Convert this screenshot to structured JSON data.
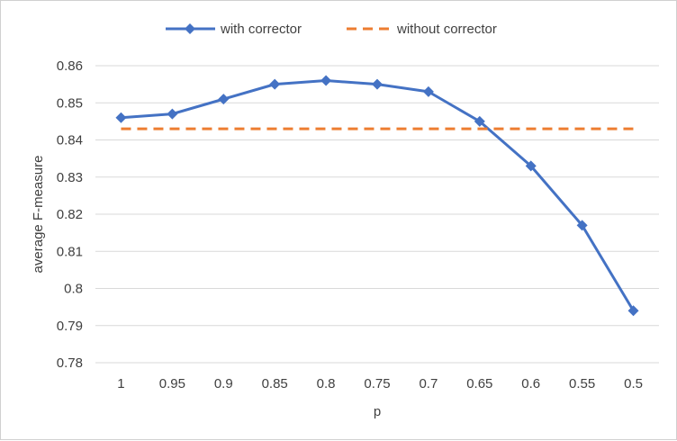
{
  "chart_data": {
    "type": "line",
    "title": "",
    "xlabel": "p",
    "ylabel": "average F-measure",
    "categories": [
      "1",
      "0.95",
      "0.9",
      "0.85",
      "0.8",
      "0.75",
      "0.7",
      "0.65",
      "0.6",
      "0.55",
      "0.5"
    ],
    "ylim": [
      0.78,
      0.86
    ],
    "yticks": [
      "0.78",
      "0.79",
      "0.8",
      "0.81",
      "0.82",
      "0.83",
      "0.84",
      "0.85",
      "0.86"
    ],
    "grid": true,
    "legend_position": "top",
    "series": [
      {
        "name": "with corrector",
        "values": [
          0.846,
          0.847,
          0.851,
          0.855,
          0.856,
          0.855,
          0.853,
          0.845,
          0.833,
          0.817,
          0.794
        ],
        "color": "#4472C4",
        "style": "solid",
        "marker": "diamond"
      },
      {
        "name": "without corrector",
        "values": [
          0.843,
          0.843,
          0.843,
          0.843,
          0.843,
          0.843,
          0.843,
          0.843,
          0.843,
          0.843,
          0.843
        ],
        "color": "#ED7D31",
        "style": "dashed",
        "marker": "none"
      }
    ]
  }
}
